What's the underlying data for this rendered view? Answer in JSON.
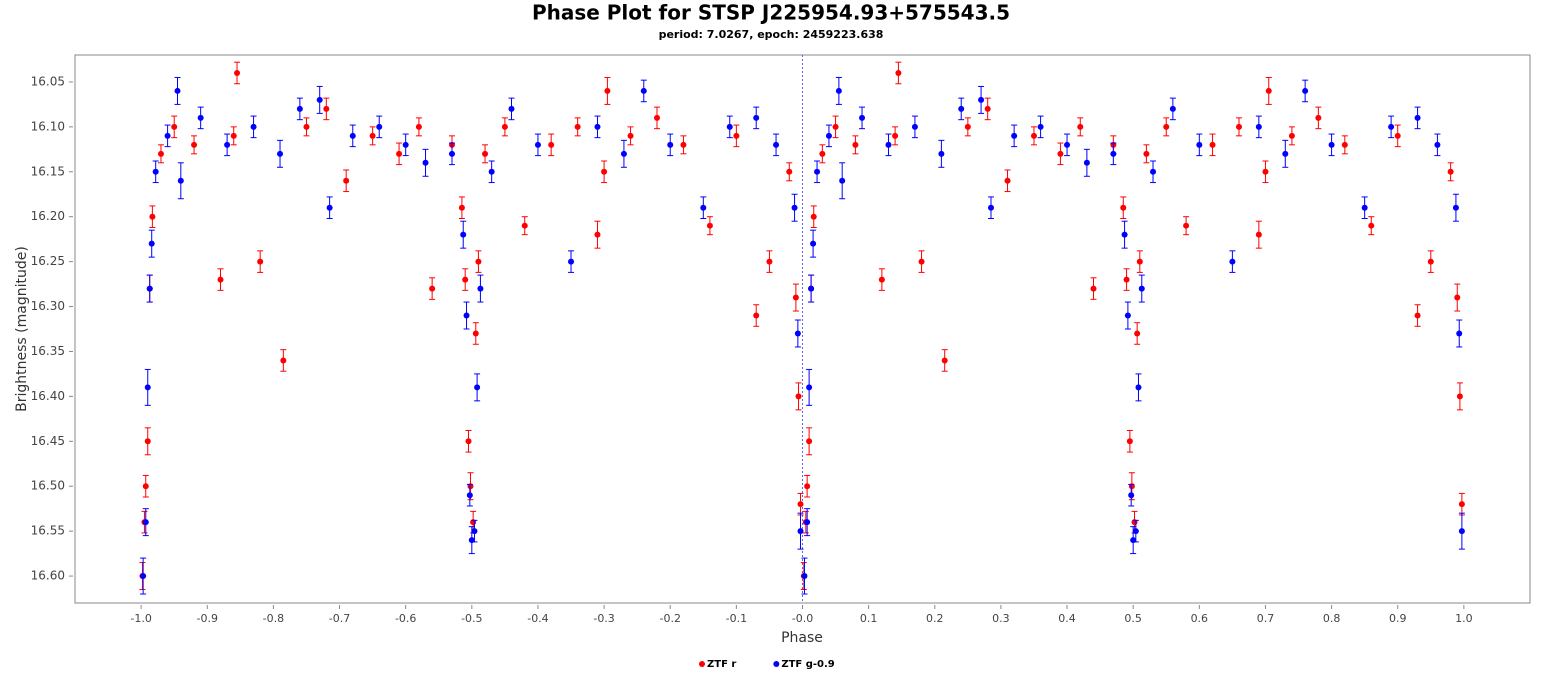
{
  "chart_data": {
    "type": "scatter",
    "title": "Phase Plot for STSP J225954.93+575543.5",
    "subtitle": "period: 7.0267, epoch: 2459223.638",
    "x_label": "Phase",
    "y_label": "Brightness (magnitude)",
    "xlim": [
      -1.1,
      1.1
    ],
    "ylim": [
      16.02,
      16.63
    ],
    "y_inverted": true,
    "xticks": [
      {
        "value": -1,
        "label": "-1.0"
      },
      -0.9,
      -0.8,
      -0.7,
      -0.6,
      -0.5,
      -0.4,
      -0.3,
      -0.2,
      -0.1,
      {
        "value": 0,
        "label": "-0.0"
      },
      0.1,
      0.2,
      0.3,
      0.4,
      0.5,
      0.6,
      0.7,
      0.8,
      0.9,
      {
        "value": 1,
        "label": "1.0"
      }
    ],
    "yticks": [
      16.05,
      {
        "value": 16.1,
        "label": "16.10"
      },
      16.15,
      {
        "value": 16.2,
        "label": "16.20"
      },
      16.25,
      {
        "value": 16.3,
        "label": "16.30"
      },
      16.35,
      {
        "value": 16.4,
        "label": "16.40"
      },
      16.45,
      {
        "value": 16.5,
        "label": "16.50"
      },
      16.55,
      {
        "value": 16.6,
        "label": "16.60"
      }
    ],
    "legend": "bottom",
    "series": [
      {
        "name": "ZTF r",
        "color": "#ff0000",
        "x": [
          -0.998,
          -0.995,
          -0.993,
          -0.99,
          -0.987,
          -0.983,
          -0.97,
          -0.95,
          -0.92,
          -0.88,
          -0.86,
          -0.855,
          -0.82,
          -0.785,
          -0.75,
          -0.72,
          -0.69,
          -0.65,
          -0.61,
          -0.58,
          -0.56,
          -0.53,
          -0.515,
          -0.51,
          -0.505,
          -0.502,
          -0.498,
          -0.494,
          -0.49,
          -0.48,
          -0.45,
          -0.42,
          -0.38,
          -0.34,
          -0.31,
          -0.3,
          -0.295,
          -0.26,
          -0.22,
          -0.18,
          -0.14,
          -0.1,
          -0.07,
          -0.05,
          -0.02,
          -0.01,
          -0.006,
          -0.003,
          0.002,
          0.005,
          0.007,
          0.01,
          0.013,
          0.017,
          0.03,
          0.05,
          0.08,
          0.12,
          0.14,
          0.145,
          0.18,
          0.215,
          0.25,
          0.28,
          0.31,
          0.35,
          0.39,
          0.42,
          0.44,
          0.47,
          0.485,
          0.49,
          0.495,
          0.498,
          0.502,
          0.506,
          0.51,
          0.52,
          0.55,
          0.58,
          0.62,
          0.66,
          0.69,
          0.7,
          0.705,
          0.74,
          0.78,
          0.82,
          0.86,
          0.9,
          0.93,
          0.95,
          0.98,
          0.99,
          0.994,
          0.997
        ],
        "values": [
          16.6,
          16.54,
          16.5,
          16.45,
          16.28,
          16.2,
          16.13,
          16.1,
          16.12,
          16.27,
          16.11,
          16.04,
          16.25,
          16.36,
          16.1,
          16.08,
          16.16,
          16.11,
          16.13,
          16.1,
          16.28,
          16.12,
          16.19,
          16.27,
          16.45,
          16.5,
          16.54,
          16.33,
          16.25,
          16.13,
          16.1,
          16.21,
          16.12,
          16.1,
          16.22,
          16.15,
          16.06,
          16.11,
          16.09,
          16.12,
          16.21,
          16.11,
          16.31,
          16.25,
          16.15,
          16.29,
          16.4,
          16.52,
          16.6,
          16.54,
          16.5,
          16.45,
          16.28,
          16.2,
          16.13,
          16.1,
          16.12,
          16.27,
          16.11,
          16.04,
          16.25,
          16.36,
          16.1,
          16.08,
          16.16,
          16.11,
          16.13,
          16.1,
          16.28,
          16.12,
          16.19,
          16.27,
          16.45,
          16.5,
          16.54,
          16.33,
          16.25,
          16.13,
          16.1,
          16.21,
          16.12,
          16.1,
          16.22,
          16.15,
          16.06,
          16.11,
          16.09,
          16.12,
          16.21,
          16.11,
          16.31,
          16.25,
          16.15,
          16.29,
          16.4,
          16.52
        ],
        "errors": [
          0.015,
          0.012,
          0.012,
          0.015,
          0.015,
          0.012,
          0.01,
          0.012,
          0.01,
          0.012,
          0.01,
          0.012,
          0.012,
          0.012,
          0.01,
          0.012,
          0.012,
          0.01,
          0.012,
          0.01,
          0.012,
          0.01,
          0.012,
          0.012,
          0.012,
          0.015,
          0.012,
          0.012,
          0.012,
          0.01,
          0.01,
          0.01,
          0.012,
          0.01,
          0.015,
          0.012,
          0.015,
          0.01,
          0.012,
          0.01,
          0.01,
          0.012,
          0.012,
          0.012,
          0.01,
          0.015,
          0.015,
          0.012,
          0.015,
          0.012,
          0.012,
          0.015,
          0.015,
          0.012,
          0.01,
          0.012,
          0.01,
          0.012,
          0.01,
          0.012,
          0.012,
          0.012,
          0.01,
          0.012,
          0.012,
          0.01,
          0.012,
          0.01,
          0.012,
          0.01,
          0.012,
          0.012,
          0.012,
          0.015,
          0.012,
          0.012,
          0.012,
          0.01,
          0.01,
          0.01,
          0.012,
          0.01,
          0.015,
          0.012,
          0.015,
          0.01,
          0.012,
          0.01,
          0.01,
          0.012,
          0.012,
          0.012,
          0.01,
          0.015,
          0.015,
          0.012
        ]
      },
      {
        "name": "ZTF g-0.9",
        "color": "#0000ff",
        "x": [
          -0.997,
          -0.993,
          -0.99,
          -0.987,
          -0.984,
          -0.978,
          -0.96,
          -0.945,
          -0.94,
          -0.91,
          -0.87,
          -0.83,
          -0.79,
          -0.76,
          -0.73,
          -0.715,
          -0.68,
          -0.64,
          -0.6,
          -0.57,
          -0.53,
          -0.513,
          -0.508,
          -0.503,
          -0.5,
          -0.496,
          -0.492,
          -0.487,
          -0.47,
          -0.44,
          -0.4,
          -0.35,
          -0.31,
          -0.27,
          -0.24,
          -0.2,
          -0.15,
          -0.11,
          -0.07,
          -0.04,
          -0.012,
          -0.007,
          -0.003,
          0.003,
          0.007,
          0.01,
          0.013,
          0.016,
          0.022,
          0.04,
          0.055,
          0.06,
          0.09,
          0.13,
          0.17,
          0.21,
          0.24,
          0.27,
          0.285,
          0.32,
          0.36,
          0.4,
          0.43,
          0.47,
          0.487,
          0.492,
          0.497,
          0.5,
          0.504,
          0.508,
          0.513,
          0.53,
          0.56,
          0.6,
          0.65,
          0.69,
          0.73,
          0.76,
          0.8,
          0.85,
          0.89,
          0.93,
          0.96,
          0.988,
          0.993,
          0.997
        ],
        "values": [
          16.6,
          16.54,
          16.39,
          16.28,
          16.23,
          16.15,
          16.11,
          16.06,
          16.16,
          16.09,
          16.12,
          16.1,
          16.13,
          16.08,
          16.07,
          16.19,
          16.11,
          16.1,
          16.12,
          16.14,
          16.13,
          16.22,
          16.31,
          16.51,
          16.56,
          16.55,
          16.39,
          16.28,
          16.15,
          16.08,
          16.12,
          16.25,
          16.1,
          16.13,
          16.06,
          16.12,
          16.19,
          16.1,
          16.09,
          16.12,
          16.19,
          16.33,
          16.55,
          16.6,
          16.54,
          16.39,
          16.28,
          16.23,
          16.15,
          16.11,
          16.06,
          16.16,
          16.09,
          16.12,
          16.1,
          16.13,
          16.08,
          16.07,
          16.19,
          16.11,
          16.1,
          16.12,
          16.14,
          16.13,
          16.22,
          16.31,
          16.51,
          16.56,
          16.55,
          16.39,
          16.28,
          16.15,
          16.08,
          16.12,
          16.25,
          16.1,
          16.13,
          16.06,
          16.12,
          16.19,
          16.1,
          16.09,
          16.12,
          16.19,
          16.33,
          16.55
        ],
        "errors": [
          0.02,
          0.015,
          0.02,
          0.015,
          0.015,
          0.012,
          0.012,
          0.015,
          0.02,
          0.012,
          0.012,
          0.012,
          0.015,
          0.012,
          0.015,
          0.012,
          0.012,
          0.012,
          0.012,
          0.015,
          0.012,
          0.015,
          0.015,
          0.012,
          0.015,
          0.012,
          0.015,
          0.015,
          0.012,
          0.012,
          0.012,
          0.012,
          0.012,
          0.015,
          0.012,
          0.012,
          0.012,
          0.012,
          0.012,
          0.012,
          0.015,
          0.015,
          0.02,
          0.02,
          0.015,
          0.02,
          0.015,
          0.015,
          0.012,
          0.012,
          0.015,
          0.02,
          0.012,
          0.012,
          0.012,
          0.015,
          0.012,
          0.015,
          0.012,
          0.012,
          0.012,
          0.012,
          0.015,
          0.012,
          0.015,
          0.015,
          0.012,
          0.015,
          0.012,
          0.015,
          0.015,
          0.012,
          0.012,
          0.012,
          0.012,
          0.012,
          0.015,
          0.012,
          0.012,
          0.012,
          0.012,
          0.012,
          0.012,
          0.015,
          0.015,
          0.02
        ]
      }
    ]
  }
}
